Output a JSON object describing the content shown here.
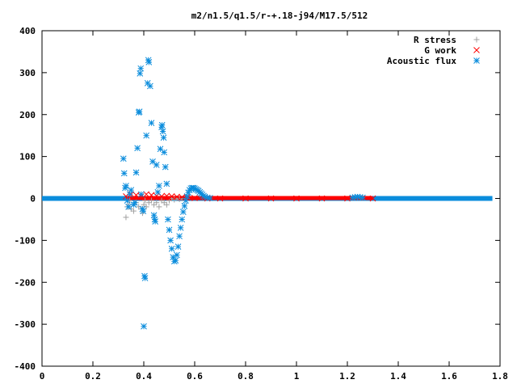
{
  "chart_data": {
    "type": "scatter",
    "title": "m2/n1.5/q1.5/r-+.18-j94/M17.5/512",
    "xlabel": "",
    "ylabel": "",
    "xlim": [
      0,
      1.8
    ],
    "ylim": [
      -400,
      400
    ],
    "x_ticks": [
      "0",
      "0.2",
      "0.4",
      "0.6",
      "0.8",
      "1",
      "1.2",
      "1.4",
      "1.6",
      "1.8"
    ],
    "y_ticks": [
      "400",
      "300",
      "200",
      "100",
      "0",
      "-100",
      "-200",
      "-300",
      "-400"
    ],
    "legend_position": "top-right",
    "series": [
      {
        "name": "R stress",
        "marker": "+",
        "color": "#a0a0a0",
        "points": [
          [
            0.33,
            -45
          ],
          [
            0.335,
            -20
          ],
          [
            0.34,
            -15
          ],
          [
            0.345,
            -5
          ],
          [
            0.35,
            -25
          ],
          [
            0.36,
            -30
          ],
          [
            0.37,
            -10
          ],
          [
            0.38,
            -20
          ],
          [
            0.39,
            -25
          ],
          [
            0.395,
            -35
          ],
          [
            0.4,
            -15
          ],
          [
            0.405,
            -5
          ],
          [
            0.41,
            -20
          ],
          [
            0.42,
            -10
          ],
          [
            0.43,
            -5
          ],
          [
            0.44,
            -15
          ],
          [
            0.45,
            -10
          ],
          [
            0.46,
            -20
          ],
          [
            0.47,
            -5
          ],
          [
            0.48,
            -10
          ],
          [
            0.49,
            -15
          ],
          [
            0.5,
            -5
          ],
          [
            0.51,
            0
          ],
          [
            0.52,
            -3
          ],
          [
            0.53,
            0
          ],
          [
            0.54,
            -2
          ],
          [
            0.55,
            0
          ]
        ]
      },
      {
        "name": "G work",
        "marker": "x",
        "color": "#ff0000",
        "points": [
          [
            0.33,
            5
          ],
          [
            0.35,
            10
          ],
          [
            0.37,
            8
          ],
          [
            0.39,
            5
          ],
          [
            0.41,
            10
          ],
          [
            0.43,
            8
          ],
          [
            0.45,
            6
          ],
          [
            0.47,
            5
          ],
          [
            0.49,
            6
          ],
          [
            0.51,
            5
          ],
          [
            0.53,
            4
          ],
          [
            0.55,
            3
          ],
          [
            0.57,
            2
          ],
          [
            0.6,
            1
          ],
          [
            0.65,
            0
          ],
          [
            0.7,
            0
          ],
          [
            0.8,
            0
          ],
          [
            0.9,
            0
          ],
          [
            1.0,
            0
          ],
          [
            1.1,
            0
          ],
          [
            1.2,
            0
          ],
          [
            1.3,
            0
          ]
        ]
      },
      {
        "name": "Acoustic flux",
        "marker": "*",
        "color": "#0a8cdc",
        "points": [
          [
            0.32,
            95
          ],
          [
            0.323,
            60
          ],
          [
            0.327,
            25
          ],
          [
            0.33,
            30
          ],
          [
            0.335,
            -5
          ],
          [
            0.34,
            -20
          ],
          [
            0.345,
            10
          ],
          [
            0.35,
            20
          ],
          [
            0.36,
            -15
          ],
          [
            0.365,
            -10
          ],
          [
            0.37,
            62
          ],
          [
            0.375,
            120
          ],
          [
            0.38,
            205
          ],
          [
            0.383,
            207
          ],
          [
            0.385,
            298
          ],
          [
            0.388,
            310
          ],
          [
            0.39,
            10
          ],
          [
            0.395,
            -25
          ],
          [
            0.398,
            -30
          ],
          [
            0.4,
            -305
          ],
          [
            0.403,
            -185
          ],
          [
            0.405,
            -190
          ],
          [
            0.41,
            150
          ],
          [
            0.415,
            275
          ],
          [
            0.418,
            330
          ],
          [
            0.42,
            325
          ],
          [
            0.425,
            268
          ],
          [
            0.43,
            180
          ],
          [
            0.435,
            88
          ],
          [
            0.44,
            -40
          ],
          [
            0.443,
            -50
          ],
          [
            0.445,
            -55
          ],
          [
            0.45,
            80
          ],
          [
            0.455,
            15
          ],
          [
            0.46,
            30
          ],
          [
            0.465,
            118
          ],
          [
            0.47,
            170
          ],
          [
            0.472,
            175
          ],
          [
            0.475,
            160
          ],
          [
            0.478,
            145
          ],
          [
            0.48,
            110
          ],
          [
            0.485,
            75
          ],
          [
            0.49,
            35
          ],
          [
            0.495,
            -50
          ],
          [
            0.5,
            -75
          ],
          [
            0.505,
            -100
          ],
          [
            0.51,
            -120
          ],
          [
            0.515,
            -140
          ],
          [
            0.52,
            -150
          ],
          [
            0.525,
            -148
          ],
          [
            0.53,
            -135
          ],
          [
            0.535,
            -115
          ],
          [
            0.54,
            -90
          ],
          [
            0.545,
            -70
          ],
          [
            0.55,
            -50
          ],
          [
            0.555,
            -32
          ],
          [
            0.56,
            -18
          ],
          [
            0.565,
            -5
          ],
          [
            0.57,
            5
          ],
          [
            0.575,
            14
          ],
          [
            0.58,
            20
          ],
          [
            0.585,
            24
          ],
          [
            0.59,
            25
          ],
          [
            0.595,
            25
          ],
          [
            0.6,
            24
          ],
          [
            0.605,
            22
          ],
          [
            0.61,
            20
          ],
          [
            0.615,
            18
          ],
          [
            0.62,
            15
          ],
          [
            0.625,
            12
          ],
          [
            0.63,
            9
          ],
          [
            0.635,
            6
          ],
          [
            0.64,
            4
          ],
          [
            0.65,
            2
          ],
          [
            0.66,
            1
          ],
          [
            1.22,
            2
          ],
          [
            1.23,
            3
          ],
          [
            1.24,
            4
          ],
          [
            1.25,
            3
          ],
          [
            1.26,
            2
          ]
        ]
      }
    ],
    "baseline": {
      "x": [
        0,
        1.77
      ],
      "value": 0
    }
  }
}
